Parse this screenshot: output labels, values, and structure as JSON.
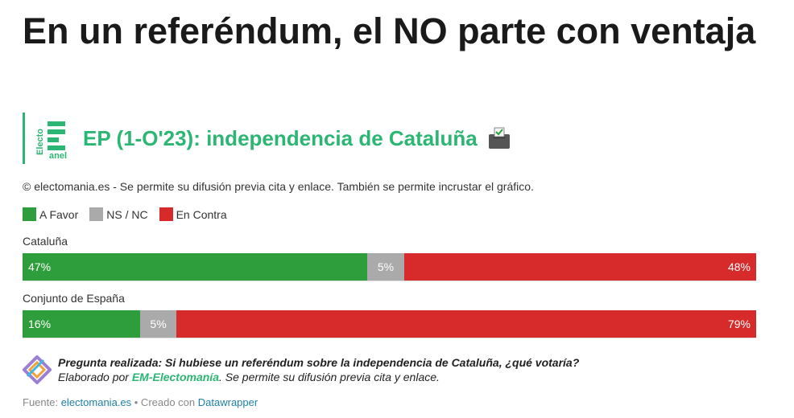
{
  "header": {
    "title": "En un referéndum, el NO parte con ventaja",
    "subtitle": "EP (1-O'23): independencia de Cataluña",
    "logo_text_top": "Electo",
    "logo_text_bottom": "anel",
    "notes": "© electomania.es - Se permite su difusión previa cita y enlace. También se permite incrustar el gráfico."
  },
  "colors": {
    "a_favor": "#2e9e3c",
    "ns_nc": "#aaaaaa",
    "en_contra": "#d72b2b",
    "brand": "#2bb673"
  },
  "chart_data": {
    "type": "bar",
    "orientation": "horizontal-stacked-100",
    "legend_placement": "top-left",
    "categories": [
      "Cataluña",
      "Conjunto de España"
    ],
    "series": [
      {
        "name": "A Favor",
        "values": [
          47,
          16
        ]
      },
      {
        "name": "NS / NC",
        "values": [
          5,
          5
        ]
      },
      {
        "name": "En Contra",
        "values": [
          48,
          79
        ]
      }
    ],
    "value_labels": [
      [
        "47%",
        "5%",
        "48%"
      ],
      [
        "16%",
        "5%",
        "79%"
      ]
    ]
  },
  "footer": {
    "question": "Pregunta realizada: Si hubiese un referéndum sobre la independencia de Cataluña, ¿qué votaría?",
    "credit_prefix": "Elaborado por ",
    "credit_brand": "EM-Electomanía",
    "credit_suffix": ". Se permite su difusión previa cita y enlace.",
    "source_label": "Fuente: ",
    "source_link": "electomania.es",
    "created_with_label": " • Creado con ",
    "created_with_link": "Datawrapper"
  }
}
